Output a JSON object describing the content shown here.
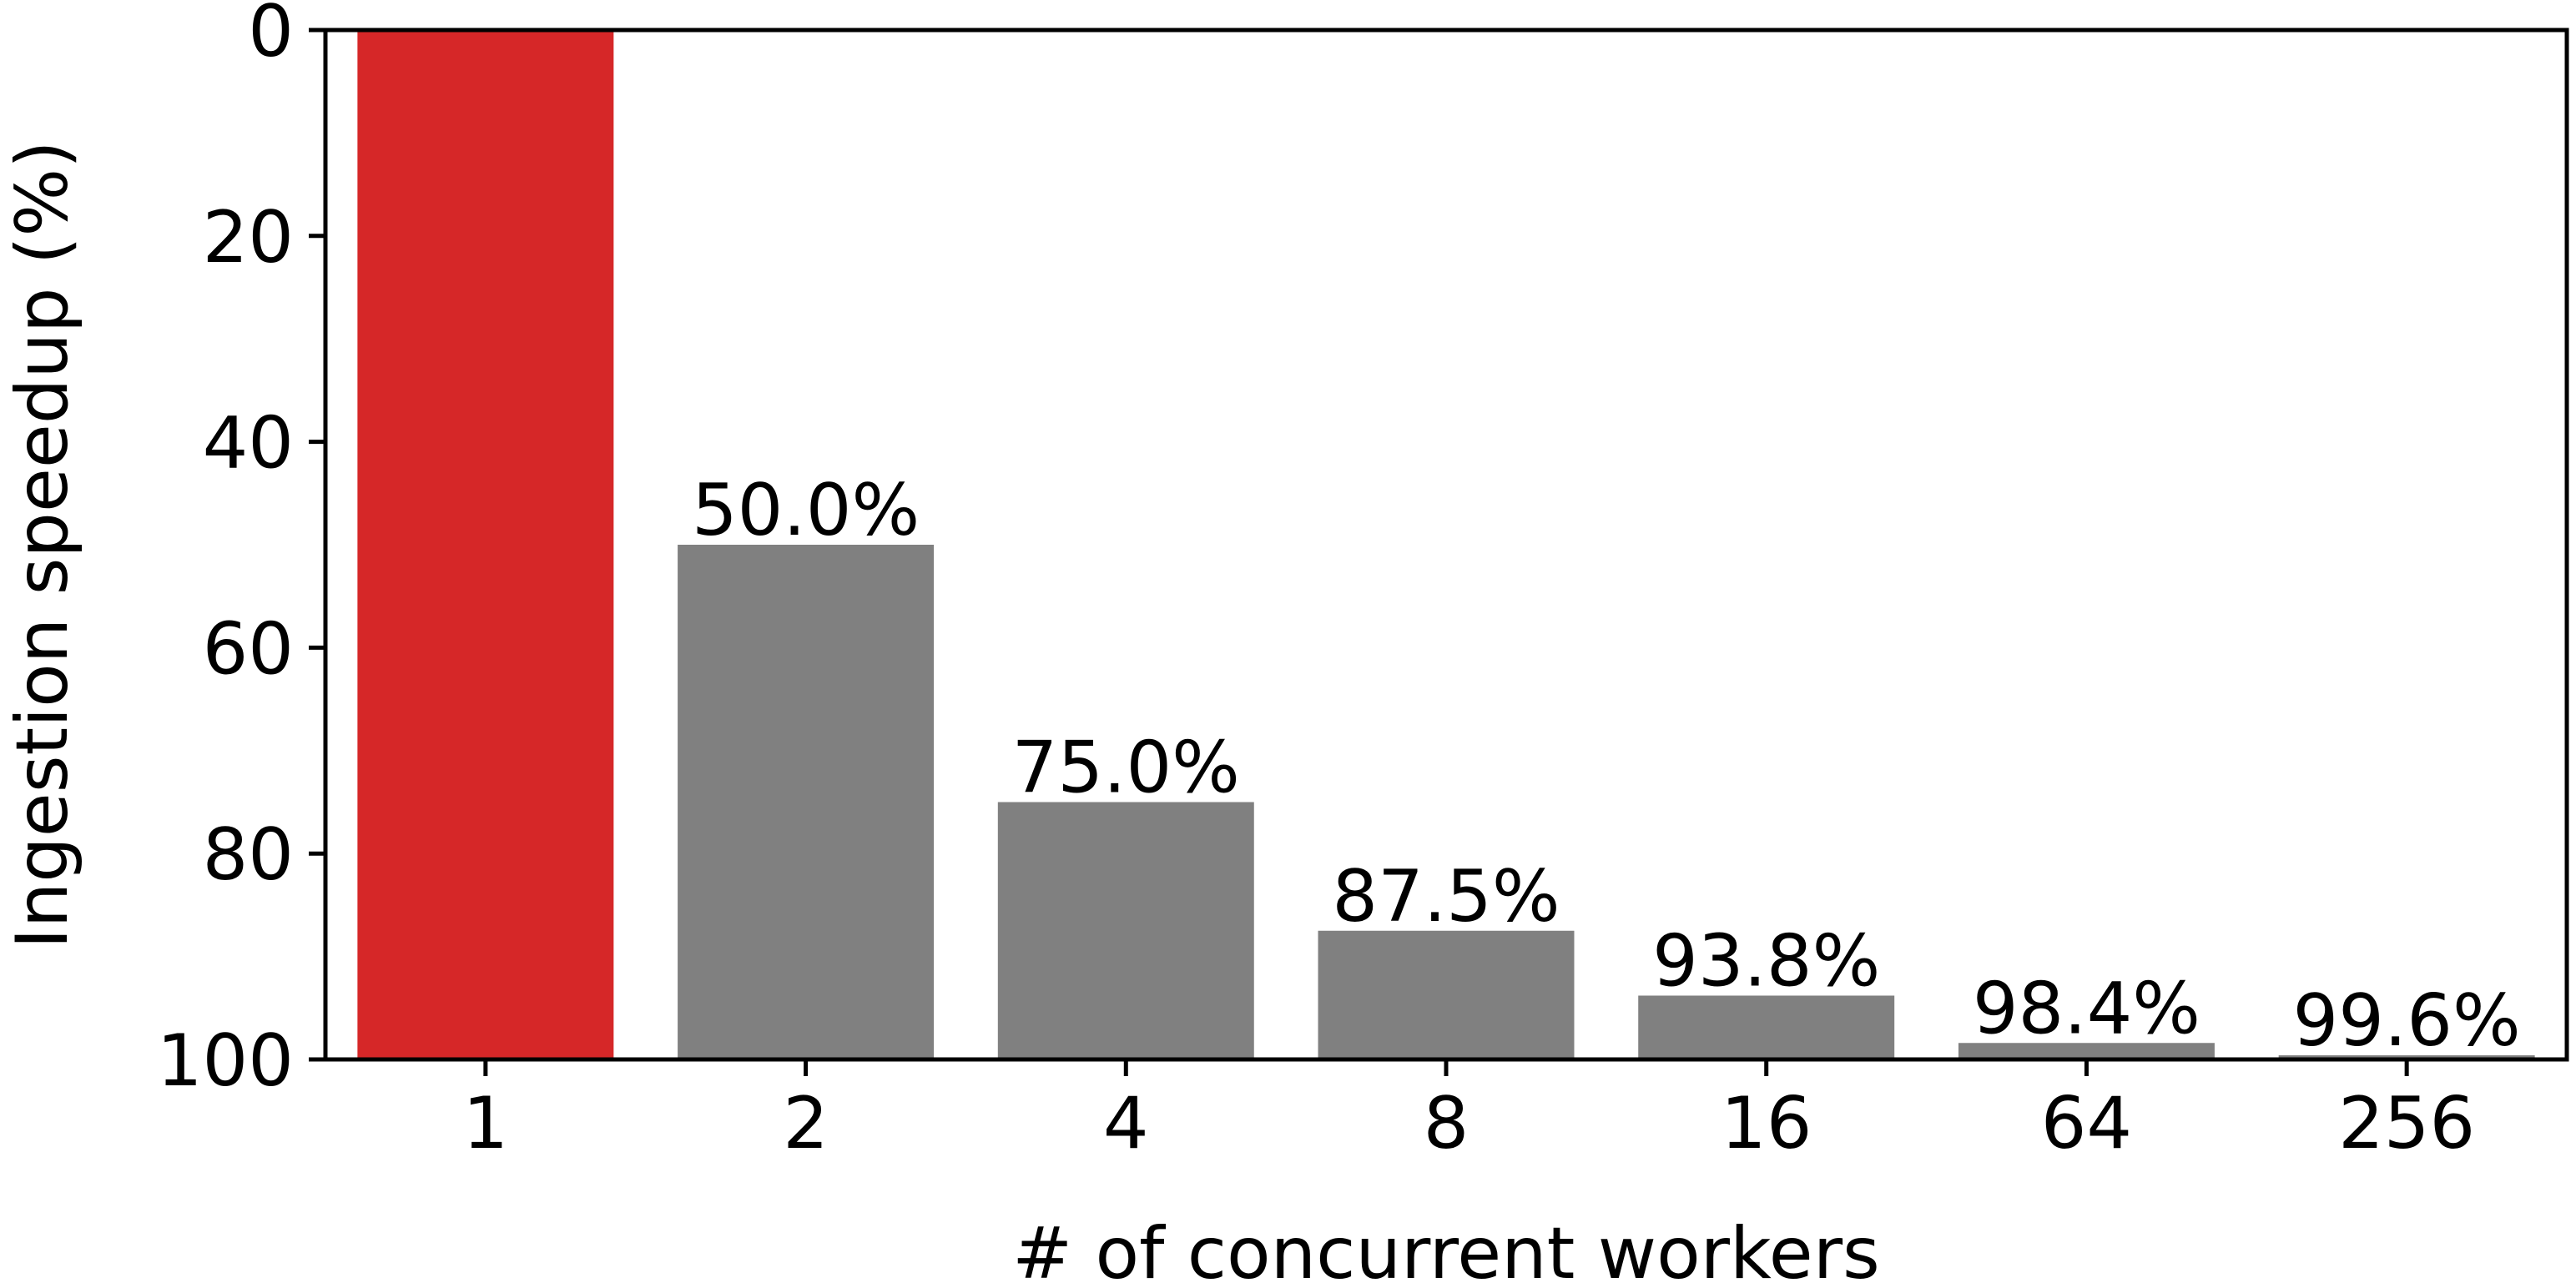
{
  "chart_data": {
    "type": "bar",
    "categories": [
      "1",
      "2",
      "4",
      "8",
      "16",
      "64",
      "256"
    ],
    "values": [
      100,
      50.0,
      25.0,
      12.5,
      6.2,
      1.6,
      0.4
    ],
    "data_labels": [
      "",
      "50.0%",
      "75.0%",
      "87.5%",
      "93.8%",
      "98.4%",
      "99.6%"
    ],
    "bar_colors": [
      "#d62728",
      "#808080",
      "#808080",
      "#808080",
      "#808080",
      "#808080",
      "#808080"
    ],
    "xlabel": "# of concurrent workers",
    "ylabel": "Ingestion speedup (%)",
    "ylim": [
      100,
      0
    ],
    "y_inverted": true,
    "yticks": [
      0,
      20,
      40,
      60,
      80,
      100
    ],
    "grid": false,
    "legend": "none"
  }
}
